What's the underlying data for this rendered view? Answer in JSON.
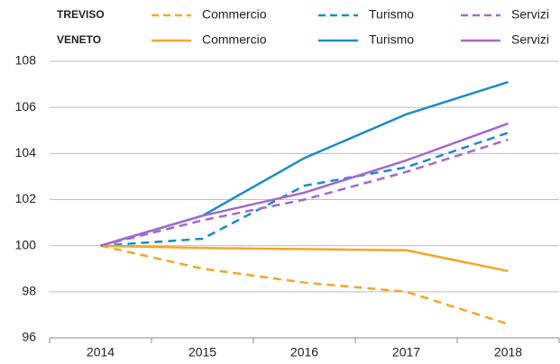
{
  "chart_data": {
    "type": "line",
    "legend_groups": [
      "TREVISO",
      "VENETO"
    ],
    "categories": [
      "2014",
      "2015",
      "2016",
      "2017",
      "2018"
    ],
    "ylim": [
      96,
      108
    ],
    "yticks": [
      96,
      98,
      100,
      102,
      104,
      106,
      108
    ],
    "grid": true,
    "series": [
      {
        "name": "Commercio",
        "color": "#f5a623",
        "dashed": true,
        "values": [
          100,
          99.0,
          98.4,
          98.0,
          96.6
        ]
      },
      {
        "name": "Turismo",
        "color": "#1b8cc5",
        "dashed": true,
        "values": [
          100,
          100.3,
          102.6,
          103.4,
          104.9
        ]
      },
      {
        "name": "Servizi",
        "color": "#a368cc",
        "dashed": true,
        "values": [
          100,
          101.1,
          102.0,
          103.2,
          104.6
        ]
      },
      {
        "name": "Commercio",
        "color": "#f5a623",
        "dashed": false,
        "values": [
          100,
          99.9,
          99.85,
          99.8,
          98.9
        ]
      },
      {
        "name": "Turismo",
        "color": "#1b8cc5",
        "dashed": false,
        "values": [
          100,
          101.3,
          103.8,
          105.7,
          107.1
        ]
      },
      {
        "name": "Servizi",
        "color": "#a368cc",
        "dashed": false,
        "values": [
          100,
          101.3,
          102.3,
          103.7,
          105.3
        ]
      }
    ]
  }
}
